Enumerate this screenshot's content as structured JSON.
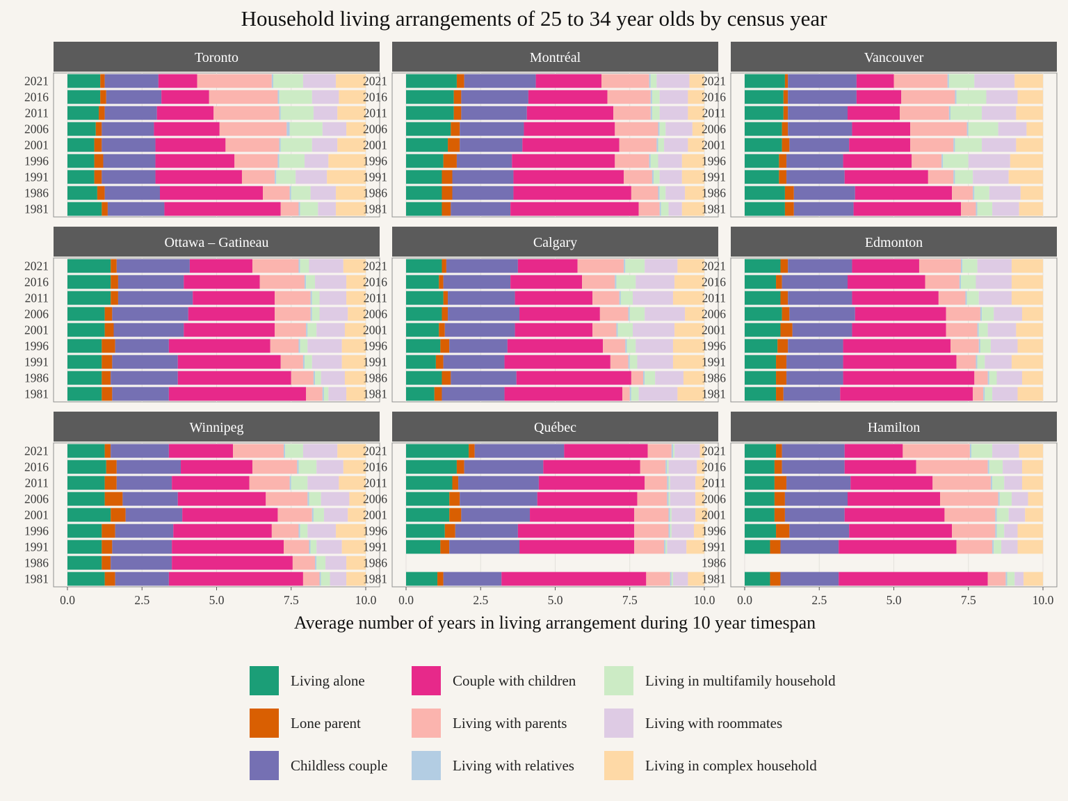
{
  "chart_data": {
    "type": "bar",
    "orientation": "horizontal",
    "stacked": true,
    "title": "Household living arrangements of 25 to 34 year olds by census year",
    "xlabel": "Average number of years in living arrangement during 10 year timespan",
    "ylabel": "",
    "xlim": [
      0,
      10
    ],
    "x_ticks": [
      "0.0",
      "2.5",
      "5.0",
      "7.5",
      "10.0"
    ],
    "x_tick_values": [
      0,
      2.5,
      5,
      7.5,
      10
    ],
    "years": [
      "2021",
      "2016",
      "2011",
      "2006",
      "2001",
      "1996",
      "1991",
      "1986",
      "1981"
    ],
    "legend_position": "bottom",
    "categories": [
      {
        "name": "Living alone",
        "color": "#1b9e77"
      },
      {
        "name": "Lone parent",
        "color": "#d95f02"
      },
      {
        "name": "Childless couple",
        "color": "#7570b3"
      },
      {
        "name": "Couple with children",
        "color": "#e7298a"
      },
      {
        "name": "Living with parents",
        "color": "#fbb4ae"
      },
      {
        "name": "Living with relatives",
        "color": "#b3cde3"
      },
      {
        "name": "Living in multifamily household",
        "color": "#ccebc5"
      },
      {
        "name": "Living with roommates",
        "color": "#decbe4"
      },
      {
        "name": "Living in complex household",
        "color": "#fed9a6"
      }
    ],
    "panels": [
      {
        "name": "Toronto",
        "values": {
          "2021": [
            1.1,
            0.15,
            1.8,
            1.3,
            2.5,
            0.05,
            1.0,
            1.1,
            1.0
          ],
          "2016": [
            1.1,
            0.2,
            1.85,
            1.6,
            2.3,
            0.05,
            1.1,
            0.9,
            0.9
          ],
          "2011": [
            1.05,
            0.2,
            1.75,
            1.9,
            2.2,
            0.05,
            1.1,
            0.8,
            0.95
          ],
          "2006": [
            0.95,
            0.2,
            1.75,
            2.2,
            2.25,
            0.1,
            1.1,
            0.8,
            0.65
          ],
          "2001": [
            0.9,
            0.25,
            1.8,
            2.35,
            1.8,
            0.05,
            1.05,
            0.85,
            0.95
          ],
          "1996": [
            0.9,
            0.3,
            1.75,
            2.65,
            1.45,
            0.05,
            0.85,
            0.8,
            1.25
          ],
          "1991": [
            0.9,
            0.25,
            1.8,
            2.9,
            1.1,
            0.05,
            0.65,
            1.05,
            1.3
          ],
          "1986": [
            1.0,
            0.25,
            1.85,
            3.45,
            0.9,
            0.05,
            0.65,
            0.85,
            1.0
          ],
          "1981": [
            1.15,
            0.2,
            1.9,
            3.9,
            0.6,
            0.05,
            0.6,
            0.6,
            1.0
          ]
        }
      },
      {
        "name": "Montréal",
        "values": {
          "2021": [
            1.7,
            0.25,
            2.4,
            2.2,
            1.6,
            0.05,
            0.2,
            1.1,
            0.5
          ],
          "2016": [
            1.6,
            0.25,
            2.25,
            2.65,
            1.45,
            0.05,
            0.25,
            0.95,
            0.55
          ],
          "2011": [
            1.6,
            0.25,
            2.2,
            2.9,
            1.25,
            0.05,
            0.25,
            0.95,
            0.55
          ],
          "2006": [
            1.5,
            0.3,
            2.15,
            3.05,
            1.45,
            0.05,
            0.2,
            0.9,
            0.4
          ],
          "2001": [
            1.4,
            0.4,
            2.1,
            3.25,
            1.25,
            0.05,
            0.2,
            0.8,
            0.55
          ],
          "1996": [
            1.25,
            0.45,
            1.85,
            3.45,
            1.15,
            0.05,
            0.25,
            0.8,
            0.75
          ],
          "1991": [
            1.2,
            0.35,
            2.05,
            3.7,
            0.95,
            0.05,
            0.2,
            0.75,
            0.75
          ],
          "1986": [
            1.2,
            0.35,
            2.05,
            3.95,
            0.9,
            0.05,
            0.2,
            0.65,
            0.65
          ],
          "1981": [
            1.2,
            0.3,
            2.0,
            4.3,
            0.7,
            0.05,
            0.25,
            0.45,
            0.75
          ]
        }
      },
      {
        "name": "Vancouver",
        "values": {
          "2021": [
            1.35,
            0.1,
            2.3,
            1.25,
            1.8,
            0.05,
            0.85,
            1.35,
            0.95
          ],
          "2016": [
            1.3,
            0.15,
            2.3,
            1.5,
            1.8,
            0.05,
            1.0,
            1.05,
            0.85
          ],
          "2011": [
            1.3,
            0.15,
            2.0,
            1.75,
            1.65,
            0.05,
            1.05,
            1.15,
            0.9
          ],
          "2006": [
            1.25,
            0.2,
            2.15,
            1.95,
            1.9,
            0.05,
            1.0,
            0.95,
            0.55
          ],
          "2001": [
            1.25,
            0.25,
            2.0,
            2.05,
            1.45,
            0.05,
            0.9,
            1.15,
            0.9
          ],
          "1996": [
            1.15,
            0.25,
            1.9,
            2.3,
            1.0,
            0.05,
            0.85,
            1.4,
            1.1
          ],
          "1991": [
            1.15,
            0.25,
            1.95,
            2.8,
            0.85,
            0.05,
            0.6,
            1.2,
            1.15
          ],
          "1986": [
            1.35,
            0.3,
            2.05,
            3.25,
            0.7,
            0.05,
            0.5,
            1.05,
            0.75
          ],
          "1981": [
            1.35,
            0.3,
            2.0,
            3.6,
            0.5,
            0.05,
            0.5,
            0.9,
            0.8
          ]
        }
      },
      {
        "name": "Ottawa – Gatineau",
        "values": {
          "2021": [
            1.45,
            0.2,
            2.45,
            2.1,
            1.55,
            0.05,
            0.3,
            1.15,
            0.75
          ],
          "2016": [
            1.45,
            0.25,
            2.2,
            2.55,
            1.5,
            0.05,
            0.3,
            1.05,
            0.65
          ],
          "2011": [
            1.45,
            0.25,
            2.5,
            2.75,
            1.2,
            0.05,
            0.25,
            0.9,
            0.65
          ],
          "2006": [
            1.25,
            0.25,
            2.55,
            2.9,
            1.2,
            0.05,
            0.25,
            0.95,
            0.6
          ],
          "2001": [
            1.25,
            0.3,
            2.35,
            3.05,
            1.05,
            0.05,
            0.3,
            0.95,
            0.7
          ],
          "1996": [
            1.15,
            0.45,
            1.8,
            3.4,
            0.95,
            0.05,
            0.25,
            1.15,
            0.8
          ],
          "1991": [
            1.15,
            0.35,
            2.2,
            3.45,
            0.75,
            0.05,
            0.25,
            1.0,
            0.8
          ],
          "1986": [
            1.15,
            0.3,
            2.25,
            3.8,
            0.75,
            0.05,
            0.2,
            0.8,
            0.7
          ],
          "1981": [
            1.15,
            0.35,
            1.9,
            4.6,
            0.55,
            0.05,
            0.15,
            0.6,
            0.65
          ]
        }
      },
      {
        "name": "Calgary",
        "values": {
          "2021": [
            1.2,
            0.15,
            2.4,
            2.0,
            1.55,
            0.05,
            0.65,
            1.1,
            0.9
          ],
          "2016": [
            1.1,
            0.15,
            2.25,
            2.4,
            1.1,
            0.05,
            0.65,
            1.3,
            1.0
          ],
          "2011": [
            1.25,
            0.15,
            2.25,
            2.6,
            0.9,
            0.05,
            0.4,
            1.35,
            1.05
          ],
          "2006": [
            1.2,
            0.2,
            2.4,
            2.7,
            0.95,
            0.05,
            0.5,
            1.35,
            0.65
          ],
          "2001": [
            1.1,
            0.2,
            2.35,
            2.6,
            0.8,
            0.05,
            0.5,
            1.4,
            1.0
          ],
          "1996": [
            1.15,
            0.3,
            1.95,
            3.2,
            0.75,
            0.05,
            0.3,
            1.25,
            1.05
          ],
          "1991": [
            1.0,
            0.25,
            2.05,
            3.55,
            0.6,
            0.05,
            0.25,
            1.2,
            1.05
          ],
          "1986": [
            1.2,
            0.3,
            2.2,
            3.85,
            0.4,
            0.05,
            0.35,
            0.95,
            0.7
          ],
          "1981": [
            0.95,
            0.25,
            2.1,
            3.95,
            0.25,
            0.05,
            0.25,
            1.3,
            0.9
          ]
        }
      },
      {
        "name": "Edmonton",
        "values": {
          "2021": [
            1.2,
            0.25,
            2.15,
            2.25,
            1.4,
            0.05,
            0.5,
            1.15,
            1.05
          ],
          "2016": [
            1.05,
            0.2,
            2.2,
            2.6,
            1.15,
            0.05,
            0.5,
            1.2,
            1.05
          ],
          "2011": [
            1.2,
            0.25,
            2.15,
            2.9,
            0.9,
            0.05,
            0.4,
            1.1,
            1.05
          ],
          "2006": [
            1.25,
            0.25,
            2.2,
            3.05,
            1.15,
            0.05,
            0.4,
            0.95,
            0.7
          ],
          "2001": [
            1.2,
            0.4,
            2.0,
            3.15,
            1.05,
            0.05,
            0.3,
            0.95,
            0.9
          ],
          "1996": [
            1.1,
            0.35,
            1.85,
            3.6,
            0.95,
            0.05,
            0.35,
            0.9,
            0.85
          ],
          "1991": [
            1.05,
            0.35,
            1.9,
            3.8,
            0.65,
            0.05,
            0.25,
            0.9,
            1.05
          ],
          "1986": [
            1.05,
            0.35,
            1.9,
            4.4,
            0.45,
            0.05,
            0.25,
            0.85,
            0.7
          ],
          "1981": [
            1.05,
            0.25,
            1.9,
            4.45,
            0.35,
            0.05,
            0.25,
            0.85,
            0.85
          ]
        }
      },
      {
        "name": "Winnipeg",
        "values": {
          "2021": [
            1.25,
            0.2,
            1.95,
            2.15,
            1.7,
            0.05,
            0.6,
            1.15,
            0.95
          ],
          "2016": [
            1.3,
            0.35,
            2.15,
            2.4,
            1.5,
            0.05,
            0.6,
            0.9,
            0.75
          ],
          "2011": [
            1.25,
            0.4,
            1.85,
            2.6,
            1.35,
            0.05,
            0.55,
            1.05,
            0.9
          ],
          "2006": [
            1.25,
            0.6,
            1.85,
            2.95,
            1.4,
            0.05,
            0.4,
            0.95,
            0.55
          ],
          "2001": [
            1.45,
            0.5,
            1.9,
            3.2,
            1.15,
            0.05,
            0.35,
            0.8,
            0.6
          ],
          "1996": [
            1.15,
            0.45,
            1.95,
            3.3,
            0.9,
            0.05,
            0.25,
            0.95,
            1.0
          ],
          "1991": [
            1.15,
            0.35,
            2.0,
            3.75,
            0.85,
            0.05,
            0.2,
            0.85,
            0.8
          ],
          "1986": [
            1.15,
            0.3,
            2.05,
            4.05,
            0.75,
            0.05,
            0.3,
            0.7,
            0.65
          ],
          "1981": [
            1.25,
            0.35,
            1.8,
            4.5,
            0.55,
            0.05,
            0.3,
            0.55,
            0.65
          ]
        }
      },
      {
        "name": "Québec",
        "values": {
          "2021": [
            2.1,
            0.2,
            3.0,
            2.8,
            0.8,
            0.05,
            0.05,
            0.85,
            0.15
          ],
          "2016": [
            1.7,
            0.25,
            2.65,
            3.25,
            0.85,
            0.05,
            0.05,
            0.95,
            0.25
          ],
          "2011": [
            1.55,
            0.2,
            2.7,
            3.55,
            0.75,
            0.05,
            0.05,
            0.85,
            0.3
          ],
          "2006": [
            1.45,
            0.35,
            2.6,
            3.35,
            1.0,
            0.05,
            0.05,
            0.85,
            0.3
          ],
          "2001": [
            1.45,
            0.4,
            2.3,
            3.5,
            1.15,
            0.05,
            0.05,
            0.8,
            0.4
          ],
          "1996": [
            1.3,
            0.35,
            2.1,
            3.9,
            1.15,
            0.05,
            0.05,
            0.75,
            0.35
          ],
          "1991": [
            1.15,
            0.3,
            2.35,
            3.85,
            1.0,
            0.05,
            0.05,
            0.65,
            0.6
          ],
          "1986": [],
          "1981": [
            1.05,
            0.2,
            1.95,
            4.85,
            0.8,
            0.05,
            0.05,
            0.5,
            0.55
          ]
        }
      },
      {
        "name": "Hamilton",
        "values": {
          "2021": [
            1.05,
            0.2,
            2.1,
            1.95,
            2.25,
            0.05,
            0.7,
            0.9,
            0.8
          ],
          "2016": [
            1.0,
            0.25,
            2.1,
            2.4,
            2.4,
            0.05,
            0.45,
            0.65,
            0.7
          ],
          "2011": [
            1.0,
            0.4,
            2.15,
            2.75,
            1.95,
            0.05,
            0.4,
            0.6,
            0.7
          ],
          "2006": [
            1.0,
            0.35,
            2.1,
            3.1,
            1.95,
            0.05,
            0.4,
            0.55,
            0.5
          ],
          "2001": [
            1.0,
            0.35,
            2.0,
            3.35,
            1.7,
            0.05,
            0.4,
            0.55,
            0.6
          ],
          "1996": [
            1.05,
            0.45,
            2.0,
            3.45,
            1.45,
            0.05,
            0.25,
            0.45,
            0.85
          ],
          "1991": [
            0.85,
            0.35,
            1.95,
            3.95,
            1.2,
            0.05,
            0.25,
            0.55,
            0.85
          ],
          "1986": [],
          "1981": [
            0.85,
            0.35,
            1.95,
            5.0,
            0.6,
            0.05,
            0.25,
            0.3,
            0.65
          ]
        }
      }
    ]
  }
}
